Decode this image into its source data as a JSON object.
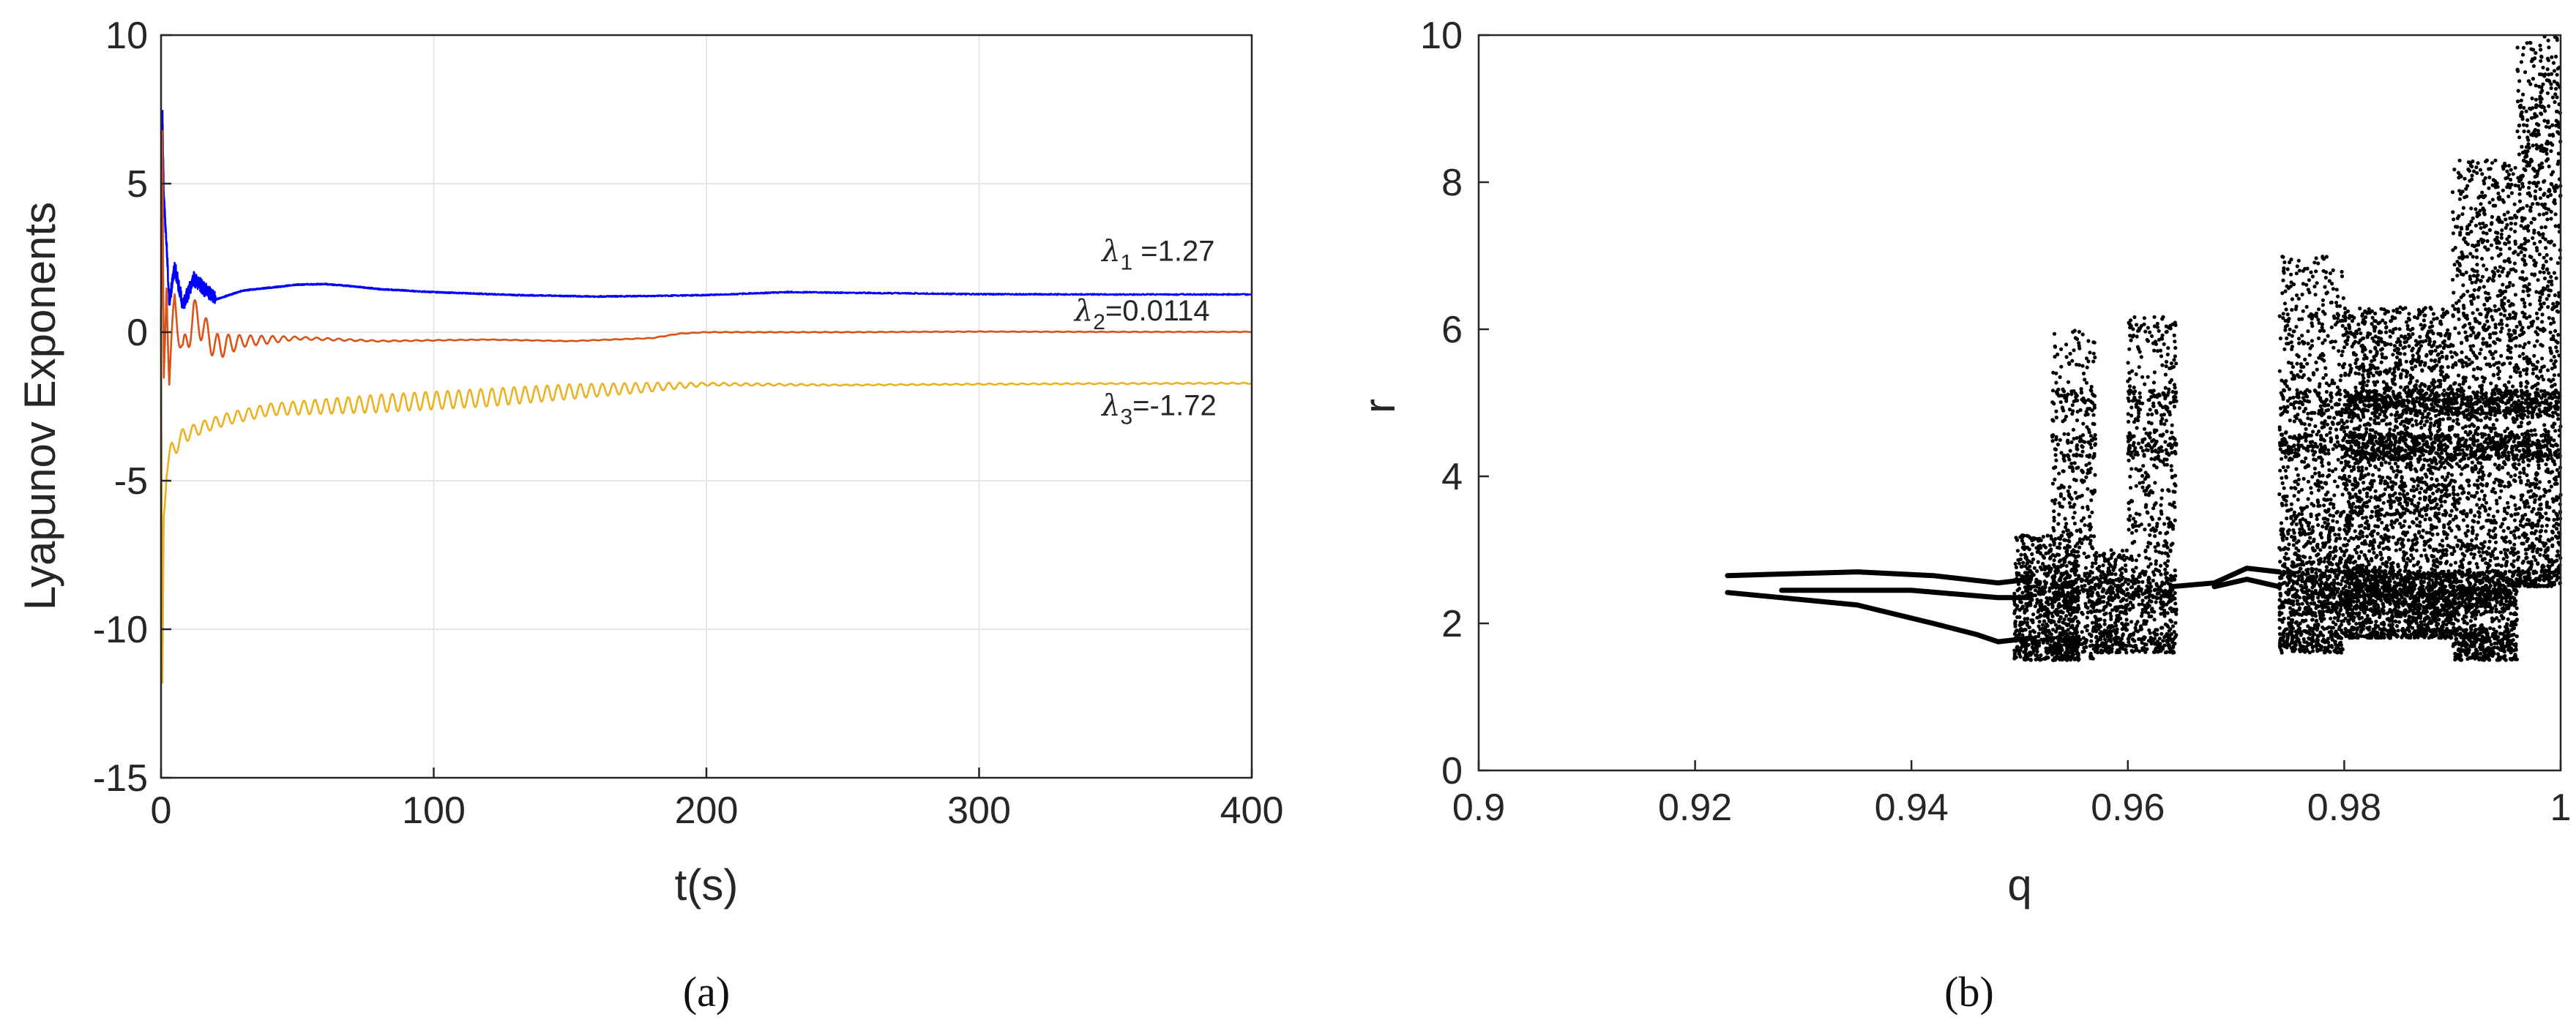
{
  "chart_data": [
    {
      "type": "line",
      "panel_label": "(a)",
      "xlabel": "t(s)",
      "ylabel": "Lyapunov Exponents",
      "xlim": [
        0,
        400
      ],
      "ylim": [
        -15,
        10
      ],
      "xticks": [
        0,
        100,
        200,
        300,
        400
      ],
      "yticks": [
        -15,
        -10,
        -5,
        0,
        5,
        10
      ],
      "grid": true,
      "series": [
        {
          "annotation": {
            "symbol": "λ",
            "sub": "1",
            "text": " =1.27",
            "at": [
              345,
              2.4
            ]
          },
          "color": "#0000ff",
          "final_value": 1.27,
          "x": [
            0,
            0.5,
            1,
            2,
            3,
            5,
            8,
            12,
            20,
            30,
            40,
            50,
            60,
            70,
            80,
            100,
            130,
            160,
            180,
            200,
            230,
            260,
            300,
            350,
            400
          ],
          "y": [
            0,
            7.5,
            4.5,
            3.0,
            1.0,
            2.2,
            0.9,
            1.8,
            1.1,
            1.4,
            1.5,
            1.6,
            1.62,
            1.55,
            1.45,
            1.35,
            1.25,
            1.2,
            1.22,
            1.25,
            1.35,
            1.32,
            1.28,
            1.27,
            1.27
          ]
        },
        {
          "annotation": {
            "symbol": "λ",
            "sub": "2",
            "text": "=0.0114",
            "at": [
              335,
              0.4
            ]
          },
          "color": "#d95319",
          "final_value": 0.0114,
          "x": [
            0,
            0.5,
            1,
            2,
            3,
            5,
            8,
            12,
            20,
            30,
            50,
            80,
            120,
            150,
            180,
            190,
            200,
            250,
            300,
            350,
            400
          ],
          "y": [
            0,
            6.0,
            -2.0,
            2.0,
            -1.5,
            1.0,
            -0.8,
            0.6,
            -0.5,
            -0.3,
            -0.2,
            -0.3,
            -0.25,
            -0.3,
            -0.2,
            -0.05,
            0.0,
            0.0,
            0.02,
            0.01,
            0.0114
          ],
          "oscillation_amplitude": [
            0,
            0.8,
            0.8,
            0.6,
            0.5,
            0.45,
            0.5,
            0.55,
            0.45,
            0.2,
            0.05,
            0.02,
            0.01,
            0.01,
            0.01,
            0.01,
            0.01,
            0.01,
            0.01,
            0.01,
            0.01
          ]
        },
        {
          "annotation": {
            "symbol": "λ",
            "sub": "3",
            "text": "=-1.72",
            "at": [
              345,
              -2.8
            ]
          },
          "color": "#edb120",
          "final_value": -1.72,
          "x": [
            0,
            0.5,
            1,
            2,
            4,
            8,
            15,
            25,
            40,
            60,
            80,
            100,
            120,
            150,
            180,
            200,
            250,
            300,
            350,
            400
          ],
          "y": [
            0,
            -12.0,
            -6.0,
            -4.5,
            -4.0,
            -3.5,
            -3.2,
            -2.9,
            -2.6,
            -2.5,
            -2.4,
            -2.3,
            -2.2,
            -2.0,
            -1.85,
            -1.75,
            -1.78,
            -1.75,
            -1.73,
            -1.72
          ],
          "oscillation_amplitude": [
            0,
            0.5,
            0.5,
            0.4,
            0.3,
            0.25,
            0.2,
            0.2,
            0.2,
            0.25,
            0.3,
            0.3,
            0.3,
            0.25,
            0.15,
            0.05,
            0.02,
            0.02,
            0.02,
            0.02
          ]
        }
      ]
    },
    {
      "type": "scatter",
      "panel_label": "(b)",
      "xlabel": "q",
      "ylabel": "r",
      "xlim": [
        0.9,
        1
      ],
      "ylim": [
        0,
        10
      ],
      "xticks": [
        0.9,
        0.92,
        0.94,
        0.96,
        0.98,
        1
      ],
      "yticks": [
        0,
        2,
        4,
        6,
        8,
        10
      ],
      "grid": false,
      "color": "#000000",
      "periodic_branches": [
        {
          "x": [
            0.923,
            0.935,
            0.942,
            0.948,
            0.951
          ],
          "y": [
            2.65,
            2.7,
            2.65,
            2.55,
            2.6
          ]
        },
        {
          "x": [
            0.923,
            0.935,
            0.942,
            0.946,
            0.948,
            0.951
          ],
          "y": [
            2.42,
            2.25,
            2.0,
            1.85,
            1.75,
            1.8
          ]
        },
        {
          "x": [
            0.928,
            0.94,
            0.948,
            0.951
          ],
          "y": [
            2.45,
            2.45,
            2.35,
            2.35
          ]
        },
        {
          "x": [
            0.964,
            0.968,
            0.971,
            0.974
          ],
          "y": [
            2.5,
            2.55,
            2.75,
            2.7
          ]
        },
        {
          "x": [
            0.968,
            0.971,
            0.974
          ],
          "y": [
            2.5,
            2.6,
            2.5
          ]
        }
      ],
      "chaotic_bands": [
        {
          "q_min": 0.9495,
          "q_max": 0.9555,
          "r_min": 1.5,
          "r_max": 3.2,
          "count": 900
        },
        {
          "q_min": 0.953,
          "q_max": 0.957,
          "r_min": 1.5,
          "r_max": 6.0,
          "count": 600
        },
        {
          "q_min": 0.957,
          "q_max": 0.96,
          "r_min": 1.6,
          "r_max": 3.0,
          "count": 400
        },
        {
          "q_min": 0.96,
          "q_max": 0.9645,
          "r_min": 1.6,
          "r_max": 6.2,
          "count": 800
        },
        {
          "q_min": 0.974,
          "q_max": 0.98,
          "r_min": 1.6,
          "r_max": 3.2,
          "count": 900
        },
        {
          "q_min": 0.974,
          "q_max": 0.98,
          "r_min": 3.2,
          "r_max": 7.0,
          "count": 900
        },
        {
          "q_min": 0.98,
          "q_max": 0.99,
          "r_min": 1.8,
          "r_max": 6.3,
          "count": 3500
        },
        {
          "q_min": 0.99,
          "q_max": 0.996,
          "r_min": 1.5,
          "r_max": 8.3,
          "count": 2200
        },
        {
          "q_min": 0.996,
          "q_max": 1.0,
          "r_min": 2.5,
          "r_max": 10.0,
          "count": 1500
        }
      ]
    }
  ]
}
